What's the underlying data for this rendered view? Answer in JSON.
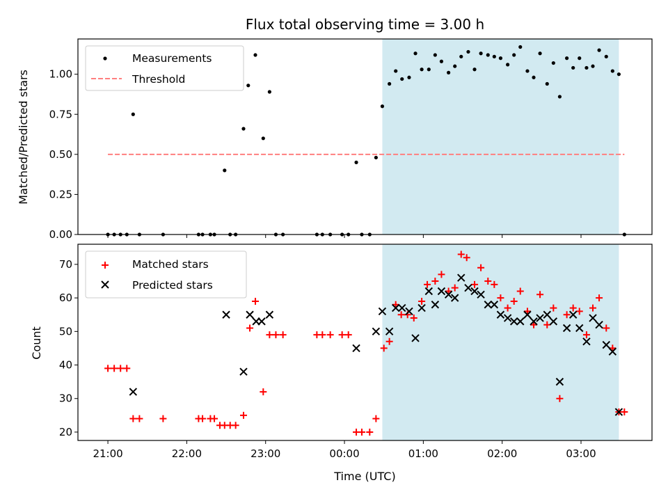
{
  "title": "Flux total observing time = 3.00 h",
  "colors": {
    "shade": "#add8e6",
    "measurement": "#000000",
    "threshold": "#ff7f7f",
    "matched": "#ff0000",
    "predicted": "#000000"
  },
  "chart_data": [
    {
      "type": "scatter",
      "panel": "top",
      "ylabel": "Matched/Predicted stars",
      "xlabel": "",
      "xlim": [
        20.62,
        27.9
      ],
      "ylim": [
        0,
        1.22
      ],
      "yticks": [
        0.0,
        0.25,
        0.5,
        0.75,
        1.0
      ],
      "ytick_labels": [
        "0.00",
        "0.25",
        "0.50",
        "0.75",
        "1.00"
      ],
      "xticks": [
        21,
        22,
        23,
        24,
        25,
        26,
        27
      ],
      "shaded_span": [
        24.48,
        27.48
      ],
      "legend": {
        "placement": "upper-left",
        "entries": [
          "Measurements",
          "Threshold"
        ]
      },
      "threshold": {
        "name": "Threshold",
        "y": 0.5,
        "x_range": [
          21.0,
          27.55
        ]
      },
      "series": [
        {
          "name": "Measurements",
          "x": [
            21.0,
            21.08,
            21.16,
            21.24,
            21.32,
            21.4,
            21.7,
            22.15,
            22.2,
            22.3,
            22.35,
            22.48,
            22.55,
            22.62,
            22.72,
            22.78,
            22.87,
            22.97,
            23.05,
            23.13,
            23.22,
            23.65,
            23.72,
            23.82,
            23.97,
            24.05,
            24.15,
            24.22,
            24.32,
            24.4,
            24.48,
            24.57,
            24.65,
            24.73,
            24.82,
            24.9,
            24.98,
            25.07,
            25.15,
            25.23,
            25.32,
            25.4,
            25.48,
            25.57,
            25.65,
            25.73,
            25.82,
            25.9,
            25.98,
            26.07,
            26.15,
            26.23,
            26.32,
            26.4,
            26.48,
            26.57,
            26.65,
            26.73,
            26.82,
            26.9,
            26.98,
            27.07,
            27.15,
            27.23,
            27.32,
            27.4,
            27.48,
            27.55
          ],
          "y": [
            0,
            0,
            0,
            0,
            0.75,
            0,
            0,
            0,
            0,
            0,
            0,
            0.4,
            0,
            0,
            0.66,
            0.93,
            1.12,
            0.6,
            0.89,
            0,
            0,
            0,
            0,
            0,
            0,
            0,
            0.45,
            0,
            0,
            0.48,
            0.8,
            0.94,
            1.02,
            0.97,
            0.98,
            1.13,
            1.03,
            1.03,
            1.12,
            1.08,
            1.01,
            1.05,
            1.11,
            1.14,
            1.03,
            1.13,
            1.12,
            1.11,
            1.1,
            1.06,
            1.12,
            1.17,
            1.02,
            0.98,
            1.13,
            0.94,
            1.07,
            0.86,
            1.1,
            1.04,
            1.1,
            1.04,
            1.05,
            1.15,
            1.11,
            1.02,
            1.0,
            0
          ]
        }
      ]
    },
    {
      "type": "scatter",
      "panel": "bottom",
      "xlabel": "Time (UTC)",
      "ylabel": "Count",
      "xlim": [
        20.62,
        27.9
      ],
      "ylim": [
        17.5,
        76
      ],
      "yticks": [
        20,
        30,
        40,
        50,
        60,
        70
      ],
      "xticks": [
        21,
        22,
        23,
        24,
        25,
        26,
        27
      ],
      "xtick_labels": [
        "21:00",
        "22:00",
        "23:00",
        "00:00",
        "01:00",
        "02:00",
        "03:00"
      ],
      "shaded_span": [
        24.48,
        27.48
      ],
      "legend": {
        "placement": "upper-left",
        "entries": [
          "Matched stars",
          "Predicted stars"
        ]
      },
      "series": [
        {
          "name": "Matched stars",
          "marker": "plus",
          "x": [
            21.0,
            21.08,
            21.16,
            21.24,
            21.32,
            21.4,
            21.7,
            22.15,
            22.2,
            22.3,
            22.35,
            22.42,
            22.48,
            22.55,
            22.62,
            22.72,
            22.8,
            22.87,
            22.97,
            23.05,
            23.13,
            23.22,
            23.65,
            23.72,
            23.82,
            23.97,
            24.05,
            24.15,
            24.22,
            24.32,
            24.4,
            24.5,
            24.57,
            24.65,
            24.72,
            24.8,
            24.88,
            24.98,
            25.05,
            25.15,
            25.23,
            25.32,
            25.4,
            25.48,
            25.55,
            25.65,
            25.73,
            25.82,
            25.9,
            25.98,
            26.07,
            26.15,
            26.23,
            26.32,
            26.4,
            26.48,
            26.57,
            26.65,
            26.73,
            26.82,
            26.9,
            26.98,
            27.07,
            27.15,
            27.23,
            27.32,
            27.4,
            27.48,
            27.55
          ],
          "y": [
            39,
            39,
            39,
            39,
            24,
            24,
            24,
            24,
            24,
            24,
            24,
            22,
            22,
            22,
            22,
            25,
            51,
            59,
            32,
            49,
            49,
            49,
            49,
            49,
            49,
            49,
            49,
            20,
            20,
            20,
            24,
            45,
            47,
            58,
            55,
            55,
            54,
            59,
            64,
            65,
            67,
            62,
            63,
            73,
            72,
            64,
            69,
            65,
            64,
            60,
            57,
            59,
            62,
            56,
            52,
            61,
            52,
            57,
            30,
            55,
            57,
            56,
            49,
            57,
            60,
            51,
            45,
            26,
            26
          ]
        },
        {
          "name": "Predicted stars",
          "marker": "x",
          "x": [
            21.32,
            22.5,
            22.72,
            22.8,
            22.88,
            22.95,
            23.05,
            24.15,
            24.4,
            24.48,
            24.57,
            24.65,
            24.73,
            24.82,
            24.9,
            24.98,
            25.07,
            25.15,
            25.23,
            25.32,
            25.4,
            25.48,
            25.57,
            25.65,
            25.73,
            25.82,
            25.9,
            25.98,
            26.07,
            26.15,
            26.23,
            26.32,
            26.4,
            26.48,
            26.57,
            26.65,
            26.73,
            26.82,
            26.9,
            26.98,
            27.07,
            27.15,
            27.23,
            27.32,
            27.4,
            27.48
          ],
          "y": [
            32,
            55,
            38,
            55,
            53,
            53,
            55,
            45,
            50,
            56,
            50,
            57,
            57,
            56,
            48,
            57,
            62,
            58,
            62,
            61,
            60,
            66,
            63,
            62,
            61,
            58,
            58,
            55,
            54,
            53,
            53,
            55,
            53,
            54,
            55,
            53,
            35,
            51,
            55,
            51,
            47,
            54,
            52,
            46,
            44,
            26
          ]
        }
      ]
    }
  ]
}
